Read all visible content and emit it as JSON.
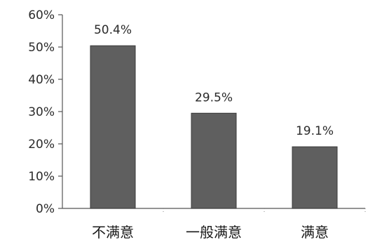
{
  "chart_data": {
    "type": "bar",
    "categories": [
      "不满意",
      "一般满意",
      "满意"
    ],
    "values": [
      50.4,
      29.5,
      19.1
    ],
    "value_labels": [
      "50.4%",
      "29.5%",
      "19.1%"
    ],
    "title": "",
    "xlabel": "",
    "ylabel": "",
    "ylim": [
      0,
      60
    ],
    "yticks": [
      0,
      10,
      20,
      30,
      40,
      50,
      60
    ],
    "ytick_labels": [
      "0%",
      "10%",
      "20%",
      "30%",
      "40%",
      "50%",
      "60%"
    ],
    "grid": false,
    "legend": "none",
    "bar_color": "#5f5f5f"
  }
}
